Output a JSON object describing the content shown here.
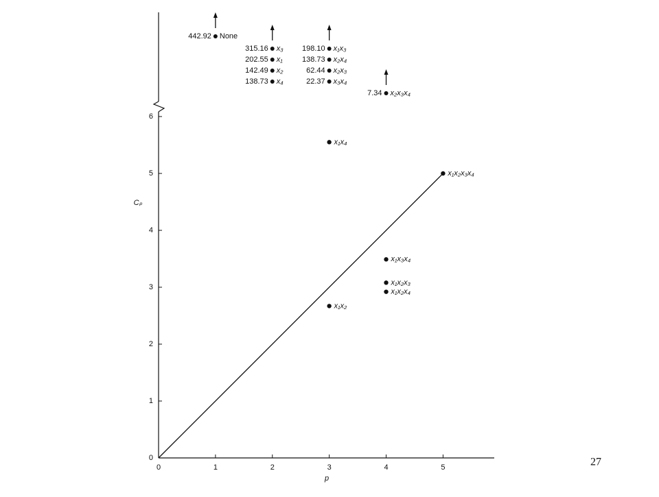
{
  "chart_data": {
    "type": "scatter",
    "x_label": "p",
    "y_label": "Cₚ",
    "xlim": [
      0,
      5.9
    ],
    "ylim": [
      0,
      6
    ],
    "xticks": [
      0,
      1,
      2,
      3,
      4,
      5
    ],
    "yticks": [
      0,
      1,
      2,
      3,
      4,
      5,
      6
    ],
    "x": [
      3,
      5,
      4,
      4,
      4,
      3
    ],
    "values": [
      5.55,
      5.0,
      3.49,
      3.08,
      2.92,
      2.67
    ],
    "point_labels": [
      "x₁x₄",
      "x₁x₂x₃x₄",
      "x₁x₃x₄",
      "x₁x₂x₃",
      "x₁x₂x₄",
      "x₁x₂"
    ],
    "reference_line": {
      "x": [
        0,
        5
      ],
      "values": [
        0,
        5
      ]
    },
    "off_scale": {
      "x": [
        1,
        2,
        2,
        2,
        2,
        3,
        3,
        3,
        3,
        4
      ],
      "values": [
        442.92,
        315.16,
        202.55,
        142.49,
        138.73,
        198.1,
        138.73,
        62.44,
        22.37,
        7.34
      ],
      "value_labels": [
        "442.92",
        "315.16",
        "202.55",
        "142.49",
        "138.73",
        "198.10",
        "138.73",
        "62.44",
        "22.37",
        "7.34"
      ],
      "labels": [
        "None",
        "x₃",
        "x₁",
        "x₂",
        "x₄",
        "x₁x₃",
        "x₂x₄",
        "x₂x₃",
        "x₃x₄",
        "x₂x₃x₄"
      ]
    },
    "color": "#111111"
  },
  "slide": {
    "page_number": "27"
  }
}
